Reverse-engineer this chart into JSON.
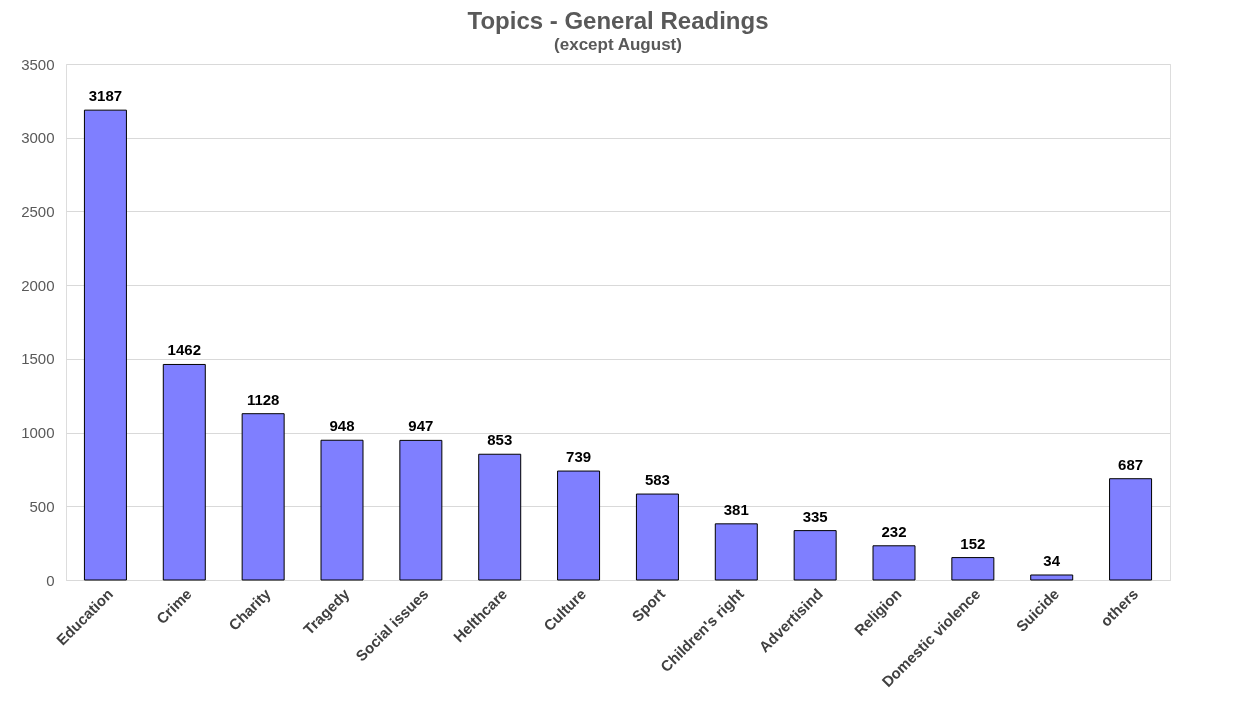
{
  "chart_data": {
    "type": "bar",
    "title": "Topics - General Readings",
    "subtitle": "(except August)",
    "categories": [
      "Education",
      "Crime",
      "Charity",
      "Tragedy",
      "Social issues",
      "Helthcare",
      "Culture",
      "Sport",
      "Children's right",
      "Advertisind",
      "Religion",
      "Domestic violence",
      "Suicide",
      "others"
    ],
    "values": [
      3187,
      1462,
      1128,
      948,
      947,
      853,
      739,
      583,
      381,
      335,
      232,
      152,
      34,
      687
    ],
    "color": "#7f7fff",
    "ylim": [
      0,
      3500
    ],
    "yticks": [
      0,
      500,
      1000,
      1500,
      2000,
      2500,
      3000,
      3500
    ],
    "grid": "y",
    "data_labels": true
  }
}
